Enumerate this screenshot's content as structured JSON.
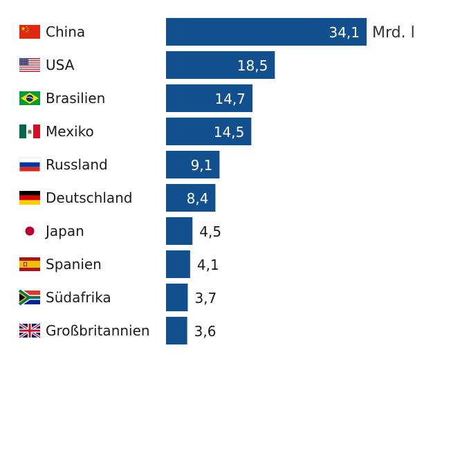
{
  "chart_data": {
    "type": "bar",
    "orientation": "horizontal",
    "unit": "Mrd. l",
    "color": "#114f8e",
    "categories": [
      "China",
      "USA",
      "Brasilien",
      "Mexiko",
      "Russland",
      "Deutschland",
      "Japan",
      "Spanien",
      "Südafrika",
      "Großbritannien"
    ],
    "values": [
      34.1,
      18.5,
      14.7,
      14.5,
      9.1,
      8.4,
      4.5,
      4.1,
      3.7,
      3.6
    ],
    "value_labels": [
      "34,1",
      "18,5",
      "14,7",
      "14,5",
      "9,1",
      "8,4",
      "4,5",
      "4,1",
      "3,7",
      "3,6"
    ],
    "flags": [
      "flag-china-icon",
      "flag-usa-icon",
      "flag-brazil-icon",
      "flag-mexico-icon",
      "flag-russia-icon",
      "flag-germany-icon",
      "flag-japan-icon",
      "flag-spain-icon",
      "flag-south-africa-icon",
      "flag-uk-icon"
    ]
  }
}
